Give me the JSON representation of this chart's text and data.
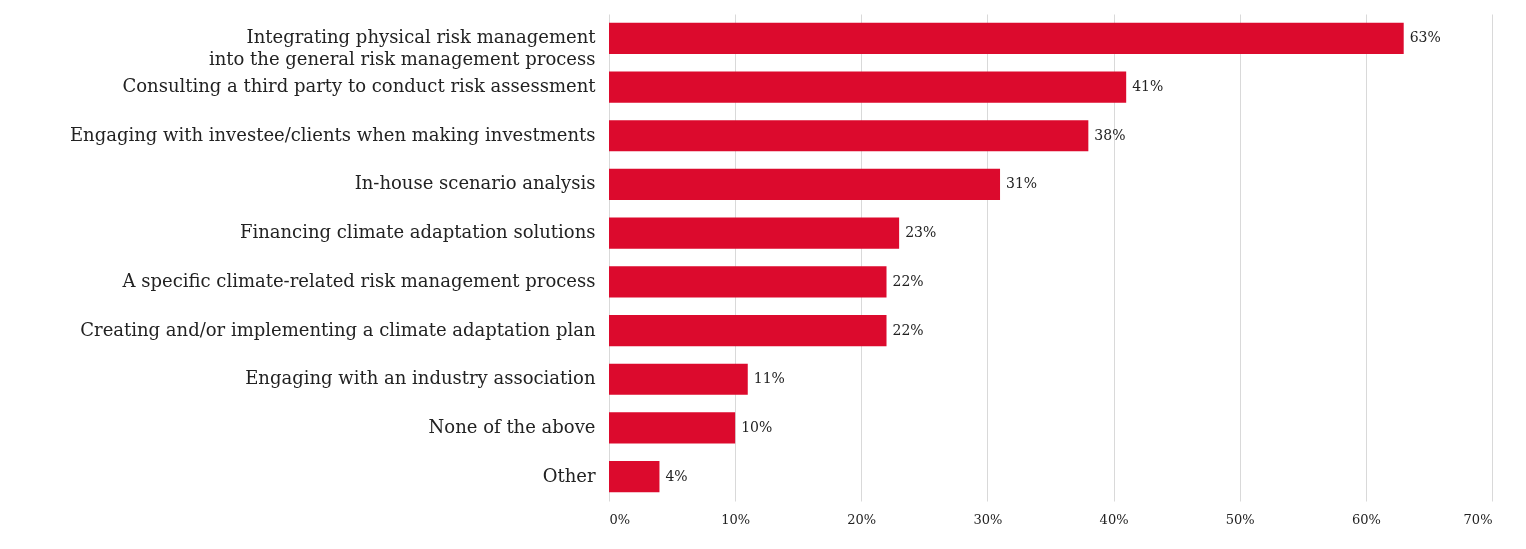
{
  "chart_data": {
    "type": "bar",
    "orientation": "horizontal",
    "categories": [
      "Integrating physical risk management into the general risk management process",
      "Consulting a third party to conduct risk assessment",
      "Engaging with investee/clients when making investments",
      "In-house scenario analysis",
      "Financing climate adaptation solutions",
      "A specific climate-related risk management process",
      "Creating and/or implementing a climate adaptation plan",
      "Engaging with an industry association",
      "None of the above",
      "Other"
    ],
    "values": [
      63,
      41,
      38,
      31,
      23,
      22,
      22,
      11,
      10,
      4
    ],
    "value_labels": [
      "63%",
      "41%",
      "38%",
      "31%",
      "23%",
      "22%",
      "22%",
      "11%",
      "10%",
      "4%"
    ],
    "color": "#dc0a2d",
    "xlim": [
      0,
      70
    ],
    "xticks": [
      {
        "value": 0,
        "label": "0%"
      },
      {
        "value": 10,
        "label": "10%"
      },
      {
        "value": 20,
        "label": "20%"
      },
      {
        "value": 30,
        "label": "30%"
      },
      {
        "value": 40,
        "label": "40%"
      },
      {
        "value": 50,
        "label": "50%"
      },
      {
        "value": 60,
        "label": "60%"
      },
      {
        "value": 70,
        "label": "70%"
      }
    ],
    "grid": "x"
  }
}
